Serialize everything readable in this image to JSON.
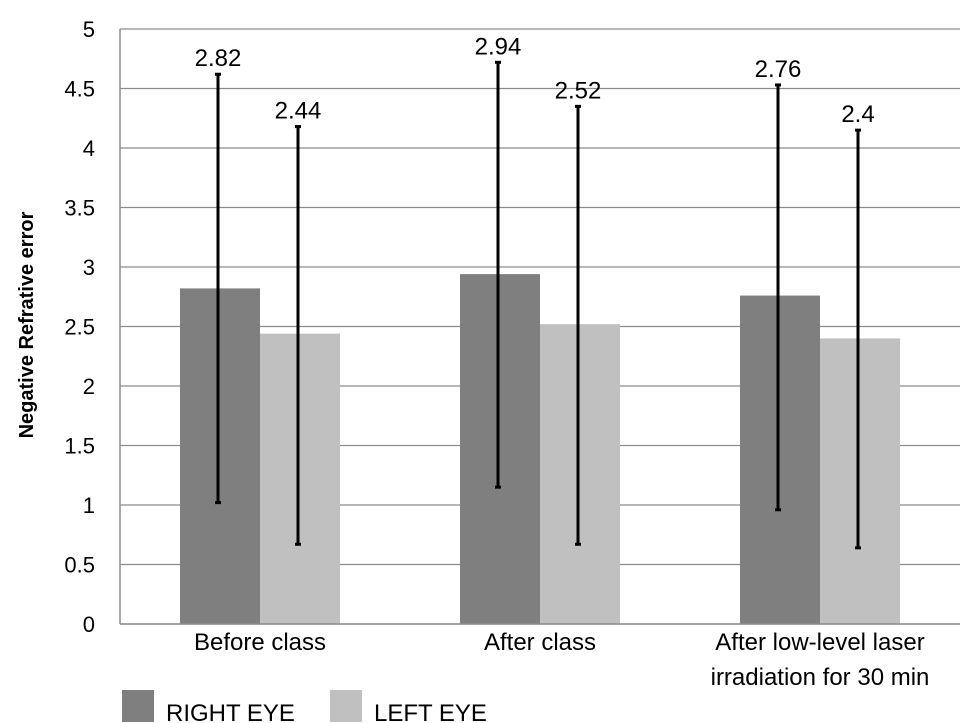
{
  "chart_data": {
    "type": "bar",
    "ylabel": "Negative Refrative error",
    "ylim": [
      0,
      5
    ],
    "yticks": [
      0,
      0.5,
      1,
      1.5,
      2,
      2.5,
      3,
      3.5,
      4,
      4.5,
      5
    ],
    "grid": true,
    "legend_position": "bottom-left",
    "categories": [
      [
        "Before class"
      ],
      [
        "After class"
      ],
      [
        "After low-level laser",
        "irradiation for 30 min"
      ]
    ],
    "series": [
      {
        "name": "RIGHT EYE",
        "color": "#7f7f7f",
        "values": [
          2.82,
          2.94,
          2.76
        ],
        "error_low": [
          1.02,
          1.15,
          0.96
        ],
        "error_high": [
          4.62,
          4.72,
          4.53
        ],
        "labels": [
          "2.82",
          "2.94",
          "2.76"
        ]
      },
      {
        "name": "LEFT EYE",
        "color": "#c0c0c0",
        "values": [
          2.44,
          2.52,
          2.4
        ],
        "error_low": [
          0.67,
          0.67,
          0.64
        ],
        "error_high": [
          4.18,
          4.35,
          4.15
        ],
        "labels": [
          "2.44",
          "2.52",
          "2.4"
        ]
      }
    ]
  }
}
